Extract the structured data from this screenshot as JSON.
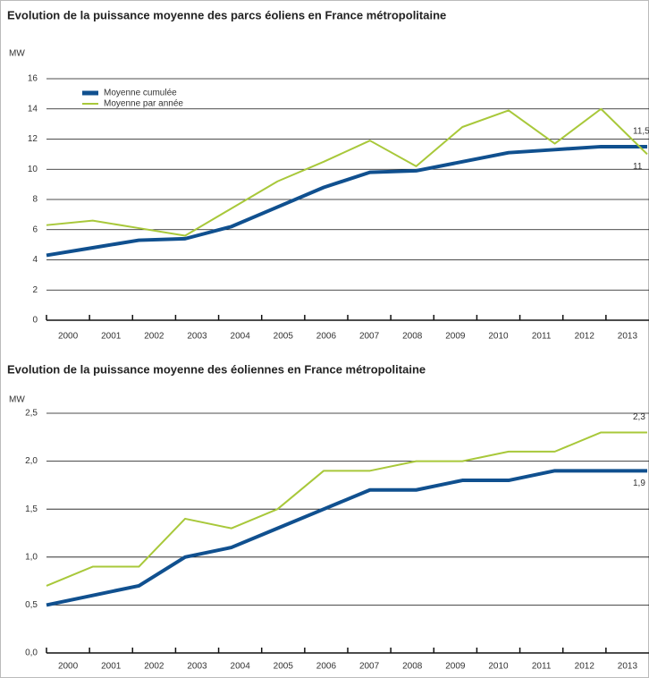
{
  "chart_data": [
    {
      "type": "line",
      "title": "Evolution de la puissance moyenne des parcs éoliens en France métropolitaine",
      "y_label": "MW",
      "categories": [
        "2000",
        "2001",
        "2002",
        "2003",
        "2004",
        "2005",
        "2006",
        "2007",
        "2008",
        "2009",
        "2010",
        "2011",
        "2012",
        "2013"
      ],
      "series": [
        {
          "name": "Moyenne cumulée",
          "color": "#10508f",
          "values": [
            4.3,
            4.8,
            5.3,
            5.4,
            6.2,
            7.5,
            8.8,
            9.8,
            9.9,
            10.5,
            11.1,
            11.3,
            11.5,
            11.5
          ]
        },
        {
          "name": "Moyenne par année",
          "color": "#a8c83a",
          "values": [
            6.3,
            6.6,
            6.1,
            5.6,
            7.4,
            9.2,
            10.5,
            11.9,
            10.2,
            12.8,
            13.9,
            11.7,
            14.0,
            11.0
          ]
        }
      ],
      "annotations": [
        "11,5",
        "11"
      ],
      "ylim": [
        0,
        16
      ],
      "yticks": [
        0,
        2,
        4,
        6,
        8,
        10,
        12,
        14,
        16
      ],
      "grid": true,
      "legend": "top-left"
    },
    {
      "type": "line",
      "title": "Evolution de la puissance moyenne des éoliennes en France métropolitaine",
      "y_label": "MW",
      "categories": [
        "2000",
        "2001",
        "2002",
        "2003",
        "2004",
        "2005",
        "2006",
        "2007",
        "2008",
        "2009",
        "2010",
        "2011",
        "2012",
        "2013"
      ],
      "series": [
        {
          "color": "#10508f",
          "values": [
            0.5,
            0.6,
            0.7,
            1.0,
            1.1,
            1.3,
            1.5,
            1.7,
            1.7,
            1.8,
            1.8,
            1.9,
            1.9,
            1.9
          ]
        },
        {
          "color": "#a8c83a",
          "values": [
            0.7,
            0.9,
            0.9,
            1.4,
            1.3,
            1.5,
            1.9,
            1.9,
            2.0,
            2.0,
            2.1,
            2.1,
            2.3,
            2.3
          ]
        }
      ],
      "annotations": [
        "2,3",
        "1,9"
      ],
      "ylim": [
        0,
        2.5
      ],
      "yticks": [
        {
          "value": 0,
          "label": "0,0"
        },
        {
          "value": 0.5,
          "label": "0,5"
        },
        {
          "value": 1,
          "label": "1,0"
        },
        {
          "value": 1.5,
          "label": "1,5"
        },
        {
          "value": 2,
          "label": "2,0"
        },
        {
          "value": 2.5,
          "label": "2,5"
        }
      ],
      "grid": true
    }
  ]
}
